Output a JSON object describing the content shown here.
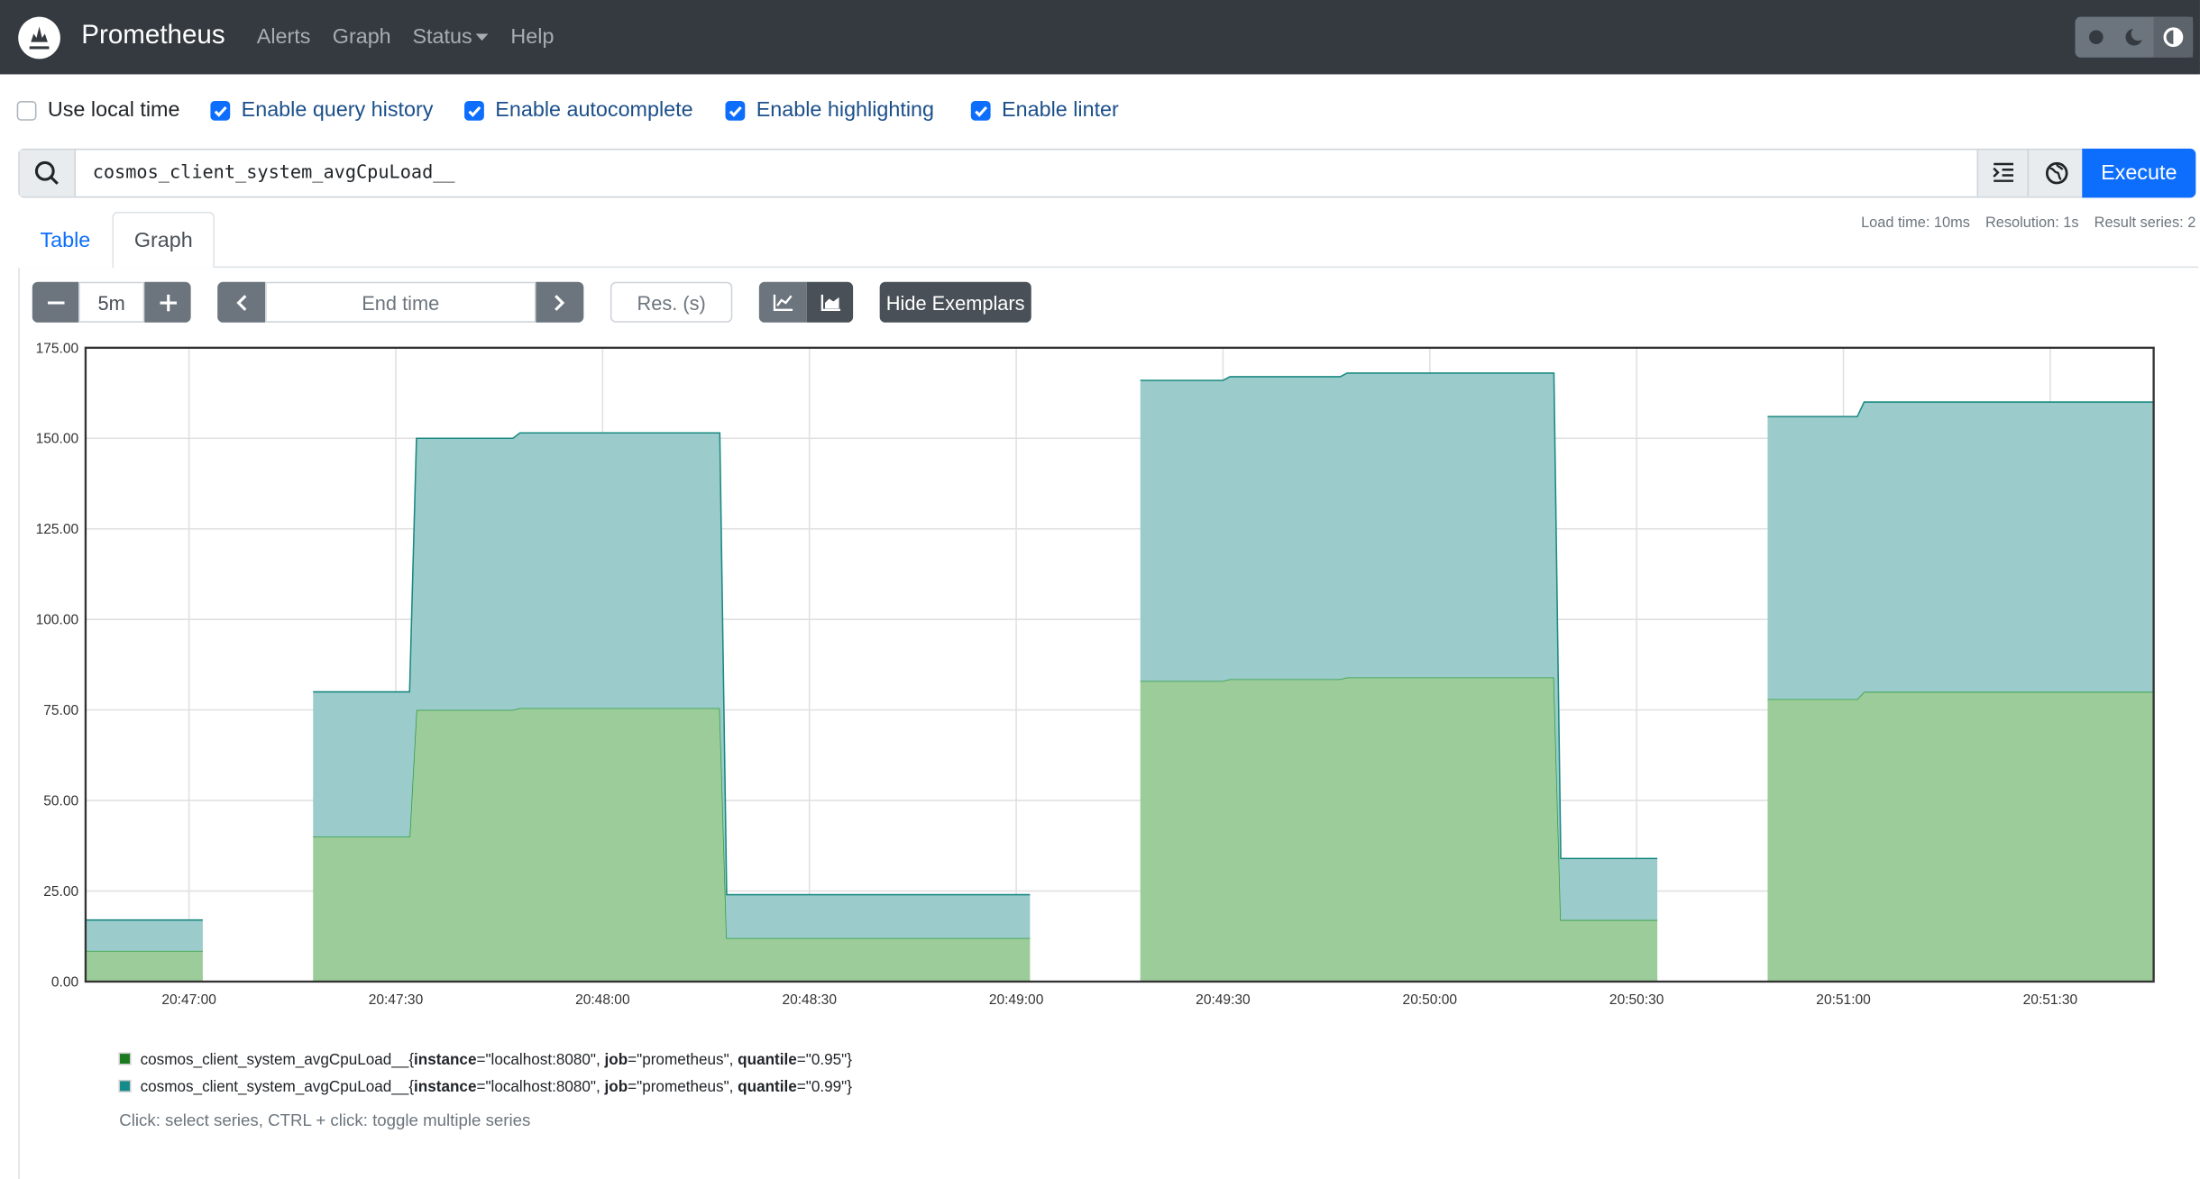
{
  "navbar": {
    "brand": "Prometheus",
    "links": [
      "Alerts",
      "Graph",
      "Status",
      "Help"
    ]
  },
  "options": {
    "labels": [
      "Use local time",
      "Enable query history",
      "Enable autocomplete",
      "Enable highlighting",
      "Enable linter"
    ],
    "checked": [
      false,
      true,
      true,
      true,
      true
    ]
  },
  "query": "cosmos_client_system_avgCpuLoad__",
  "execute": "Execute",
  "stats": [
    "Load time: 10ms",
    "Resolution: 1s",
    "Result series: 2"
  ],
  "tabs": {
    "labels": [
      "Table",
      "Graph"
    ],
    "active": 1
  },
  "controls": {
    "range": "5m",
    "end_time": "End time",
    "resolution": "Res. (s)",
    "exemplars": "Hide Exemplars"
  },
  "chart_data": {
    "type": "stacked-area",
    "x": [
      74805,
      74822,
      74830,
      74838,
      74852,
      74853,
      74867,
      74868,
      74897,
      74898,
      74942,
      74950,
      74958,
      74970,
      74971,
      74987,
      74988,
      75018,
      75019,
      75033,
      75041,
      75049,
      75062,
      75063,
      75105
    ],
    "series": [
      {
        "name": "cosmos_client_system_avgCpuLoad__{instance=\"localhost:8080\", job=\"prometheus\", quantile=\"0.95\"}",
        "color": "#2f9e44",
        "fill": "#9ccc9a",
        "legend_color": "#197a1f",
        "values": [
          8.5,
          8.5,
          null,
          40,
          40,
          75,
          75,
          75.5,
          75.5,
          12,
          12,
          null,
          83,
          83,
          83.5,
          83.5,
          84,
          84,
          17,
          17,
          null,
          78,
          78,
          80,
          80
        ]
      },
      {
        "name": "cosmos_client_system_avgCpuLoad__{instance=\"localhost:8080\", job=\"prometheus\", quantile=\"0.99\"}",
        "color": "#1a8a80",
        "fill": "#9ccbcc",
        "legend_color": "#148a8a",
        "values": [
          8.5,
          8.5,
          null,
          40,
          40,
          75,
          75,
          76,
          76,
          12,
          12,
          null,
          83,
          83,
          83.5,
          83.5,
          84,
          84,
          17,
          17,
          null,
          78,
          78,
          80,
          80
        ]
      }
    ],
    "xlim": [
      74805,
      75105
    ],
    "xticks": [
      {
        "value": 74820,
        "label": "20:47:00"
      },
      {
        "value": 74850,
        "label": "20:47:30"
      },
      {
        "value": 74880,
        "label": "20:48:00"
      },
      {
        "value": 74910,
        "label": "20:48:30"
      },
      {
        "value": 74940,
        "label": "20:49:00"
      },
      {
        "value": 74970,
        "label": "20:49:30"
      },
      {
        "value": 75000,
        "label": "20:50:00"
      },
      {
        "value": 75030,
        "label": "20:50:30"
      },
      {
        "value": 75060,
        "label": "20:51:00"
      },
      {
        "value": 75090,
        "label": "20:51:30"
      }
    ],
    "ylim": [
      0,
      175
    ],
    "yticks": [
      {
        "value": 0,
        "label": "0.00"
      },
      {
        "value": 25,
        "label": "25.00"
      },
      {
        "value": 50,
        "label": "50.00"
      },
      {
        "value": 75,
        "label": "75.00"
      },
      {
        "value": 100,
        "label": "100.00"
      },
      {
        "value": 125,
        "label": "125.00"
      },
      {
        "value": 150,
        "label": "150.00"
      },
      {
        "value": 175,
        "label": "175.00"
      }
    ],
    "grid": true,
    "legend_hint": "Click: select series, CTRL + click: toggle multiple series"
  }
}
